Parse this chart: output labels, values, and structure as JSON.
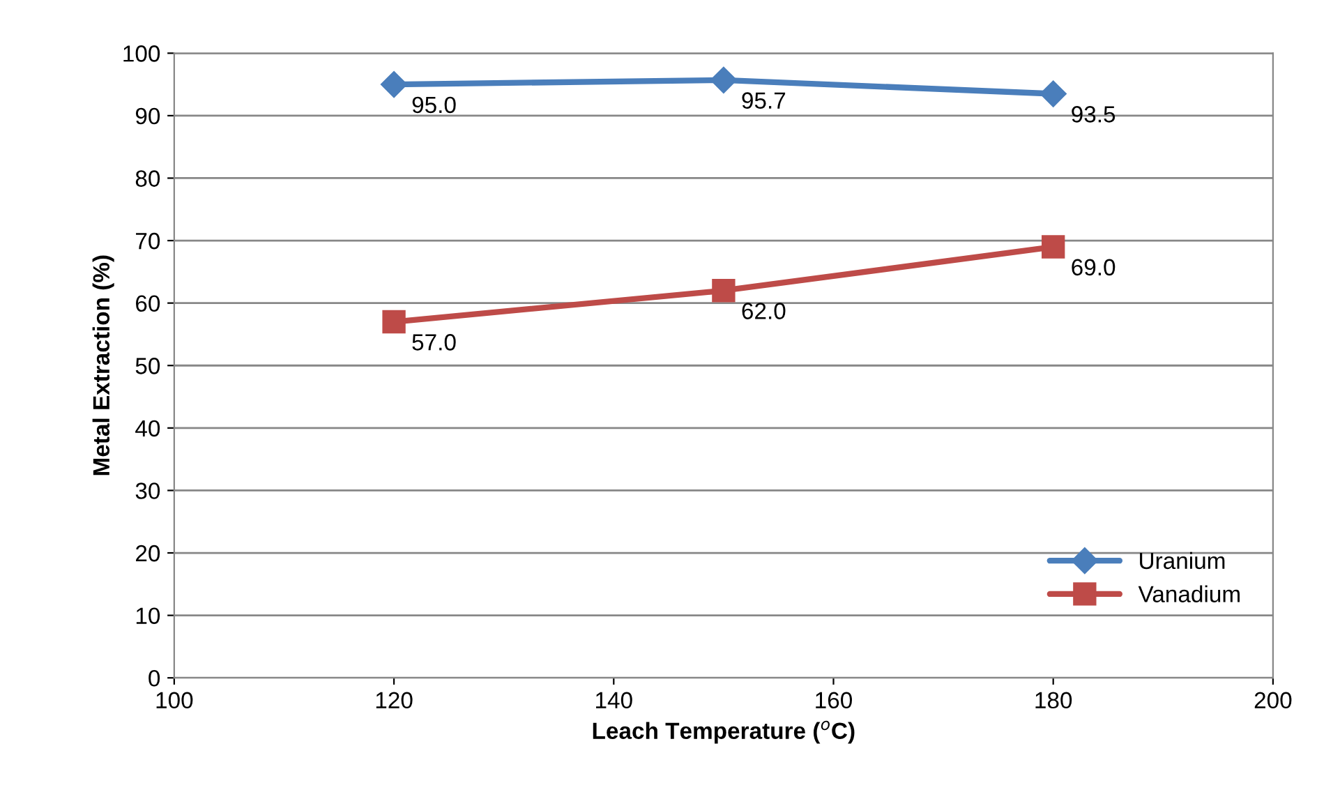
{
  "chart_data": {
    "type": "line",
    "xlabel": "Leach Temperature ($^{o}$C)",
    "ylabel": "Metal Extraction (%)",
    "x": [
      120,
      150,
      180
    ],
    "series": [
      {
        "name": "Uranium",
        "color": "#4a7ebb",
        "marker": "diamond",
        "values": [
          95.0,
          95.7,
          93.5
        ],
        "value_labels": [
          "95.0",
          "95.7",
          "93.5"
        ]
      },
      {
        "name": "Vanadium",
        "color": "#be4b48",
        "marker": "square",
        "values": [
          57.0,
          62.0,
          69.0
        ],
        "value_labels": [
          "57.0",
          "62.0",
          "69.0"
        ]
      }
    ],
    "xlim": [
      100,
      200
    ],
    "xticks": [
      100,
      120,
      140,
      160,
      180,
      200
    ],
    "ylim": [
      0,
      100
    ],
    "yticks": [
      0,
      10,
      20,
      30,
      40,
      50,
      60,
      70,
      80,
      90,
      100
    ],
    "grid": "y",
    "legend": "bottom right",
    "line_style": "solid"
  }
}
